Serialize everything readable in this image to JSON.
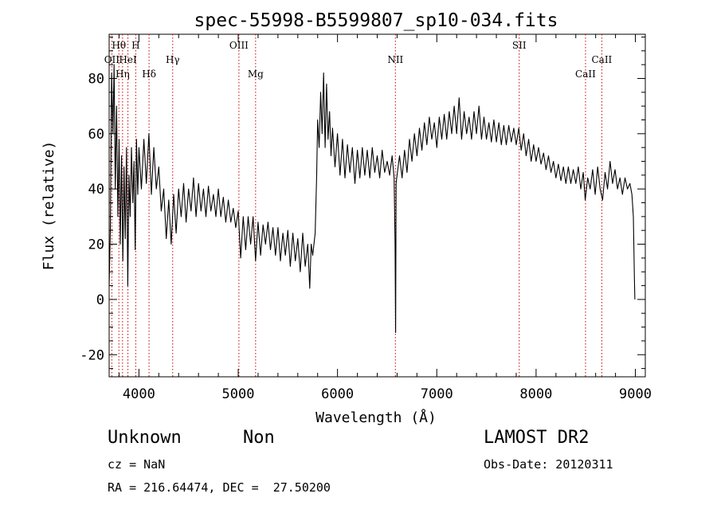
{
  "chart_data": {
    "type": "line",
    "title": "spec-55998-B5599807_sp10-034.fits",
    "xlabel": "Wavelength (Å)",
    "ylabel": "Flux (relative)",
    "xlim": [
      3700,
      9100
    ],
    "ylim": [
      -28,
      96
    ],
    "xticks": [
      4000,
      5000,
      6000,
      7000,
      8000,
      9000
    ],
    "yticks": [
      -20,
      0,
      20,
      40,
      60,
      80
    ],
    "grid": false,
    "line_color": "#000000",
    "marker_color": "#cc0000",
    "lines": [
      {
        "label": "OII",
        "wavelength": 3727,
        "row": 2
      },
      {
        "label": "Hθ",
        "wavelength": 3798,
        "row": 1
      },
      {
        "label": "Hη",
        "wavelength": 3835,
        "row": 3
      },
      {
        "label": "HeI",
        "wavelength": 3889,
        "row": 2
      },
      {
        "label": "H",
        "wavelength": 3968,
        "row": 1
      },
      {
        "label": "Hδ",
        "wavelength": 4102,
        "row": 3
      },
      {
        "label": "Hγ",
        "wavelength": 4340,
        "row": 2
      },
      {
        "label": "OIII",
        "wavelength": 5007,
        "row": 1
      },
      {
        "label": "Mg",
        "wavelength": 5175,
        "row": 3
      },
      {
        "label": "NII",
        "wavelength": 6583,
        "row": 2
      },
      {
        "label": "SII",
        "wavelength": 7830,
        "row": 1
      },
      {
        "label": "CaII",
        "wavelength": 8498,
        "row": 3
      },
      {
        "label": "CaII",
        "wavelength": 8662,
        "row": 2
      }
    ],
    "spectrum": [
      [
        3700,
        5
      ],
      [
        3712,
        25
      ],
      [
        3725,
        82
      ],
      [
        3738,
        60
      ],
      [
        3750,
        85
      ],
      [
        3762,
        40
      ],
      [
        3775,
        70
      ],
      [
        3788,
        30
      ],
      [
        3800,
        58
      ],
      [
        3812,
        20
      ],
      [
        3825,
        52
      ],
      [
        3838,
        14
      ],
      [
        3850,
        48
      ],
      [
        3862,
        22
      ],
      [
        3875,
        55
      ],
      [
        3888,
        5
      ],
      [
        3900,
        45
      ],
      [
        3912,
        30
      ],
      [
        3925,
        55
      ],
      [
        3938,
        35
      ],
      [
        3950,
        50
      ],
      [
        3962,
        18
      ],
      [
        3975,
        58
      ],
      [
        3988,
        38
      ],
      [
        4000,
        55
      ],
      [
        4025,
        40
      ],
      [
        4050,
        58
      ],
      [
        4075,
        42
      ],
      [
        4100,
        60
      ],
      [
        4125,
        38
      ],
      [
        4150,
        55
      ],
      [
        4175,
        40
      ],
      [
        4200,
        48
      ],
      [
        4225,
        32
      ],
      [
        4250,
        40
      ],
      [
        4275,
        22
      ],
      [
        4300,
        36
      ],
      [
        4325,
        20
      ],
      [
        4350,
        38
      ],
      [
        4375,
        24
      ],
      [
        4400,
        40
      ],
      [
        4425,
        30
      ],
      [
        4450,
        42
      ],
      [
        4475,
        28
      ],
      [
        4500,
        40
      ],
      [
        4525,
        32
      ],
      [
        4550,
        44
      ],
      [
        4575,
        30
      ],
      [
        4600,
        42
      ],
      [
        4625,
        32
      ],
      [
        4650,
        40
      ],
      [
        4675,
        30
      ],
      [
        4700,
        41
      ],
      [
        4725,
        32
      ],
      [
        4750,
        38
      ],
      [
        4775,
        30
      ],
      [
        4800,
        40
      ],
      [
        4825,
        30
      ],
      [
        4850,
        37
      ],
      [
        4875,
        28
      ],
      [
        4900,
        36
      ],
      [
        4925,
        28
      ],
      [
        4950,
        33
      ],
      [
        4975,
        26
      ],
      [
        5000,
        32
      ],
      [
        5025,
        15
      ],
      [
        5050,
        30
      ],
      [
        5075,
        18
      ],
      [
        5100,
        30
      ],
      [
        5125,
        20
      ],
      [
        5150,
        30
      ],
      [
        5175,
        14
      ],
      [
        5200,
        28
      ],
      [
        5225,
        16
      ],
      [
        5250,
        27
      ],
      [
        5275,
        20
      ],
      [
        5300,
        28
      ],
      [
        5325,
        18
      ],
      [
        5350,
        26
      ],
      [
        5375,
        16
      ],
      [
        5400,
        26
      ],
      [
        5425,
        14
      ],
      [
        5450,
        24
      ],
      [
        5475,
        16
      ],
      [
        5500,
        25
      ],
      [
        5525,
        12
      ],
      [
        5550,
        24
      ],
      [
        5575,
        14
      ],
      [
        5600,
        22
      ],
      [
        5625,
        10
      ],
      [
        5650,
        24
      ],
      [
        5675,
        12
      ],
      [
        5700,
        20
      ],
      [
        5720,
        4
      ],
      [
        5735,
        20
      ],
      [
        5750,
        16
      ],
      [
        5775,
        24
      ],
      [
        5790,
        45
      ],
      [
        5800,
        65
      ],
      [
        5815,
        55
      ],
      [
        5830,
        75
      ],
      [
        5845,
        60
      ],
      [
        5860,
        82
      ],
      [
        5875,
        55
      ],
      [
        5890,
        78
      ],
      [
        5905,
        58
      ],
      [
        5920,
        68
      ],
      [
        5935,
        52
      ],
      [
        5950,
        62
      ],
      [
        5975,
        48
      ],
      [
        6000,
        60
      ],
      [
        6025,
        45
      ],
      [
        6050,
        58
      ],
      [
        6075,
        44
      ],
      [
        6100,
        56
      ],
      [
        6125,
        46
      ],
      [
        6150,
        55
      ],
      [
        6175,
        42
      ],
      [
        6200,
        54
      ],
      [
        6225,
        44
      ],
      [
        6250,
        55
      ],
      [
        6275,
        45
      ],
      [
        6300,
        54
      ],
      [
        6325,
        44
      ],
      [
        6350,
        55
      ],
      [
        6375,
        46
      ],
      [
        6400,
        52
      ],
      [
        6425,
        44
      ],
      [
        6450,
        54
      ],
      [
        6475,
        46
      ],
      [
        6500,
        50
      ],
      [
        6525,
        45
      ],
      [
        6550,
        52
      ],
      [
        6570,
        44
      ],
      [
        6580,
        20
      ],
      [
        6585,
        -12
      ],
      [
        6590,
        42
      ],
      [
        6600,
        45
      ],
      [
        6625,
        52
      ],
      [
        6650,
        44
      ],
      [
        6675,
        54
      ],
      [
        6700,
        46
      ],
      [
        6725,
        58
      ],
      [
        6750,
        50
      ],
      [
        6775,
        60
      ],
      [
        6800,
        52
      ],
      [
        6825,
        62
      ],
      [
        6850,
        54
      ],
      [
        6875,
        64
      ],
      [
        6900,
        56
      ],
      [
        6925,
        66
      ],
      [
        6950,
        58
      ],
      [
        6975,
        64
      ],
      [
        7000,
        55
      ],
      [
        7025,
        66
      ],
      [
        7050,
        58
      ],
      [
        7075,
        67
      ],
      [
        7100,
        58
      ],
      [
        7125,
        68
      ],
      [
        7150,
        60
      ],
      [
        7175,
        70
      ],
      [
        7200,
        60
      ],
      [
        7225,
        73
      ],
      [
        7250,
        58
      ],
      [
        7275,
        68
      ],
      [
        7300,
        60
      ],
      [
        7325,
        66
      ],
      [
        7350,
        58
      ],
      [
        7375,
        68
      ],
      [
        7400,
        60
      ],
      [
        7425,
        70
      ],
      [
        7450,
        58
      ],
      [
        7475,
        66
      ],
      [
        7500,
        58
      ],
      [
        7525,
        64
      ],
      [
        7550,
        57
      ],
      [
        7575,
        65
      ],
      [
        7600,
        57
      ],
      [
        7625,
        64
      ],
      [
        7650,
        56
      ],
      [
        7675,
        63
      ],
      [
        7700,
        56
      ],
      [
        7725,
        63
      ],
      [
        7750,
        57
      ],
      [
        7775,
        62
      ],
      [
        7800,
        56
      ],
      [
        7825,
        62
      ],
      [
        7850,
        54
      ],
      [
        7875,
        60
      ],
      [
        7900,
        52
      ],
      [
        7925,
        58
      ],
      [
        7950,
        50
      ],
      [
        7975,
        56
      ],
      [
        8000,
        50
      ],
      [
        8025,
        55
      ],
      [
        8050,
        49
      ],
      [
        8075,
        53
      ],
      [
        8100,
        47
      ],
      [
        8125,
        52
      ],
      [
        8150,
        46
      ],
      [
        8175,
        50
      ],
      [
        8200,
        44
      ],
      [
        8225,
        49
      ],
      [
        8250,
        43
      ],
      [
        8275,
        48
      ],
      [
        8300,
        42
      ],
      [
        8325,
        48
      ],
      [
        8350,
        42
      ],
      [
        8375,
        47
      ],
      [
        8400,
        42
      ],
      [
        8425,
        48
      ],
      [
        8450,
        40
      ],
      [
        8475,
        46
      ],
      [
        8495,
        36
      ],
      [
        8520,
        44
      ],
      [
        8545,
        40
      ],
      [
        8570,
        47
      ],
      [
        8595,
        38
      ],
      [
        8620,
        48
      ],
      [
        8645,
        40
      ],
      [
        8670,
        36
      ],
      [
        8695,
        46
      ],
      [
        8720,
        40
      ],
      [
        8745,
        50
      ],
      [
        8770,
        42
      ],
      [
        8795,
        47
      ],
      [
        8820,
        40
      ],
      [
        8845,
        44
      ],
      [
        8870,
        38
      ],
      [
        8895,
        44
      ],
      [
        8920,
        40
      ],
      [
        8945,
        42
      ],
      [
        8965,
        38
      ],
      [
        8980,
        30
      ],
      [
        8990,
        8
      ],
      [
        8995,
        0
      ]
    ]
  },
  "info": {
    "class": "Unknown",
    "subclass": "Non",
    "cz": "cz = NaN",
    "coords": "RA = 216.64474, DEC =  27.50200",
    "survey": "LAMOST DR2",
    "obs_date": "Obs-Date: 20120311"
  }
}
